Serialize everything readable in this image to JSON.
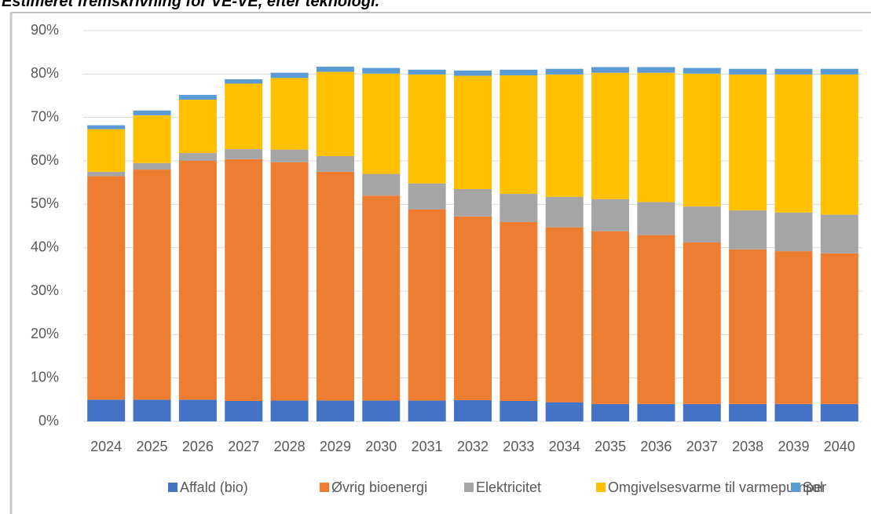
{
  "chart_data": {
    "type": "stacked_bar",
    "title": "Estimeret fremskrivning for VE-VE, efter teknologi.",
    "categories": [
      "2024",
      "2025",
      "2026",
      "2027",
      "2028",
      "2029",
      "2030",
      "2031",
      "2032",
      "2033",
      "2034",
      "2035",
      "2036",
      "2037",
      "2038",
      "2039",
      "2040"
    ],
    "series": [
      {
        "name": "Affald (bio)",
        "color": "#4472c4",
        "values": [
          5,
          5,
          5,
          4.7,
          4.8,
          4.8,
          4.8,
          4.8,
          4.9,
          4.7,
          4.4,
          4,
          4,
          4,
          4,
          4,
          4
        ]
      },
      {
        "name": "Øvrig bioenergi",
        "color": "#ed7d31",
        "values": [
          51.5,
          53,
          55,
          55.7,
          54.9,
          52.7,
          47.2,
          44,
          42.3,
          41.2,
          40.3,
          39.8,
          38.9,
          37.2,
          35.6,
          35.2,
          34.7
        ]
      },
      {
        "name": "Elektricitet",
        "color": "#a5a5a5",
        "values": [
          1,
          1.5,
          1.8,
          2.3,
          2.9,
          3.6,
          5,
          6,
          6.3,
          6.5,
          7,
          7.4,
          7.6,
          8.3,
          9,
          8.9,
          8.9
        ]
      },
      {
        "name": "Omgivelsesvarme til varmepumper",
        "color": "#ffc000",
        "values": [
          9.8,
          11,
          12.3,
          15.1,
          16.5,
          19.4,
          23.1,
          25.1,
          26.1,
          27.3,
          28.2,
          29.1,
          29.8,
          30.6,
          31.3,
          31.8,
          32.3
        ]
      },
      {
        "name": "Sol",
        "color": "#5b9bd5",
        "values": [
          0.9,
          1.1,
          1.1,
          1,
          1.2,
          1.2,
          1.3,
          1.1,
          1.2,
          1.3,
          1.3,
          1.3,
          1.3,
          1.3,
          1.3,
          1.3,
          1.3
        ]
      }
    ],
    "ylim": [
      0,
      90
    ],
    "yticks": [
      {
        "value": 0,
        "label": "0%"
      },
      {
        "value": 10,
        "label": "10%"
      },
      {
        "value": 20,
        "label": "20%"
      },
      {
        "value": 30,
        "label": "30%"
      },
      {
        "value": 40,
        "label": "40%"
      },
      {
        "value": 50,
        "label": "50%"
      },
      {
        "value": 60,
        "label": "60%"
      },
      {
        "value": 70,
        "label": "70%"
      },
      {
        "value": 80,
        "label": "80%"
      },
      {
        "value": 90,
        "label": "90%"
      }
    ],
    "grid": true,
    "legend": "bottom"
  }
}
